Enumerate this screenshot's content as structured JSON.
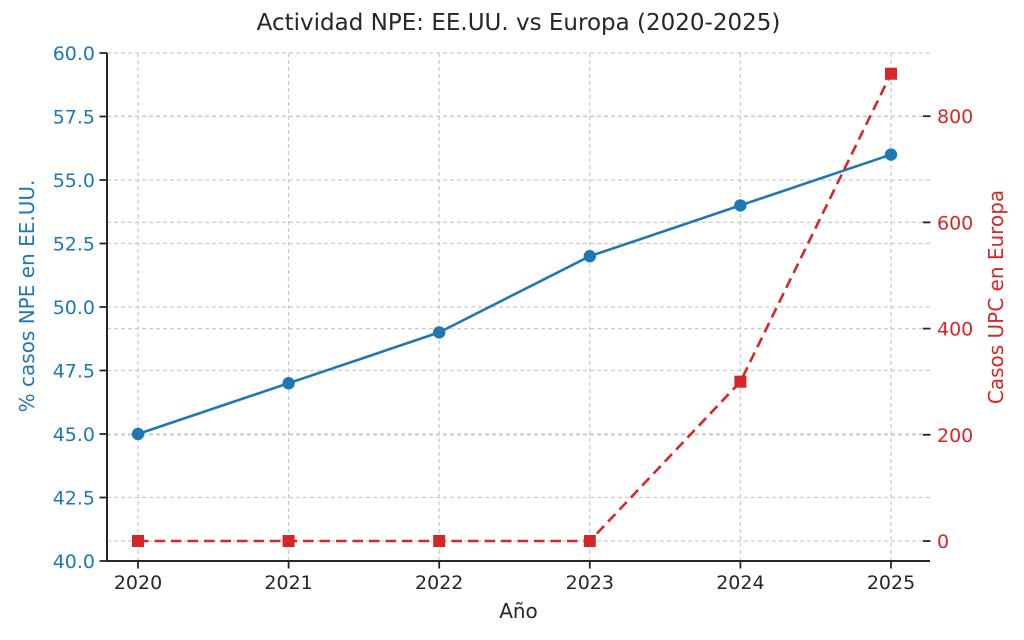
{
  "chart_data": {
    "type": "line",
    "title": "Actividad NPE: EE.UU. vs Europa (2020-2025)",
    "xlabel": "Año",
    "ylabel_left": "% casos NPE en EE.UU.",
    "ylabel_right": "Casos UPC en Europa",
    "x": [
      2020,
      2021,
      2022,
      2023,
      2024,
      2025
    ],
    "x_tick_labels": [
      "2020",
      "2021",
      "2022",
      "2023",
      "2024",
      "2025"
    ],
    "series": [
      {
        "id": "us-npe",
        "name": "% casos NPE en EE.UU.",
        "axis": "left",
        "color": "#1f77b4",
        "line_style": "solid",
        "marker": "circle",
        "values": [
          45,
          47,
          49,
          52,
          54,
          56
        ]
      },
      {
        "id": "eu-upc",
        "name": "Casos UPC en Europa",
        "axis": "right",
        "color": "#d62728",
        "line_style": "dashed",
        "marker": "square",
        "values": [
          0,
          0,
          0,
          0,
          300,
          880
        ]
      }
    ],
    "left_axis": {
      "min": 40.0,
      "max": 60.0,
      "tick_values": [
        40.0,
        42.5,
        45.0,
        47.5,
        50.0,
        52.5,
        55.0,
        57.5,
        60.0
      ],
      "tick_labels": [
        "40.0",
        "42.5",
        "45.0",
        "47.5",
        "50.0",
        "52.5",
        "55.0",
        "57.5",
        "60.0"
      ],
      "color": "#1f77b4"
    },
    "right_axis": {
      "tick_values": [
        0,
        200,
        400,
        600,
        800
      ],
      "tick_labels": [
        "0",
        "200",
        "400",
        "600",
        "800"
      ],
      "color": "#d62728"
    },
    "grid": true,
    "legend": "none",
    "colors": {
      "grid": "#cccccc",
      "axis": "#262626",
      "background": "#ffffff"
    }
  }
}
